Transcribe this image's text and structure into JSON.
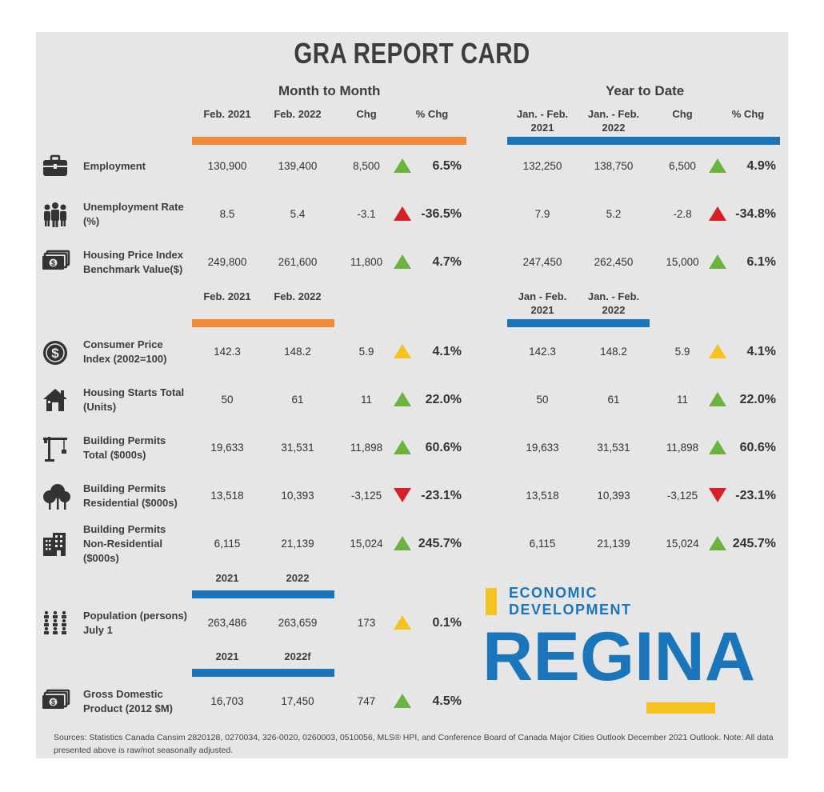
{
  "title": "GRA REPORT CARD",
  "sections": {
    "month": "Month to Month",
    "year": "Year to Date"
  },
  "headers": {
    "mm": [
      "Feb. 2021",
      "Feb. 2022",
      "Chg",
      "% Chg"
    ],
    "yy": [
      "Jan. - Feb. 2021",
      "Jan. - Feb. 2022",
      "Chg",
      "% Chg"
    ],
    "mm2": [
      "Feb. 2021",
      "Feb. 2022"
    ],
    "yy2": [
      "Jan - Feb. 2021",
      "Jan. - Feb. 2022"
    ],
    "pop": [
      "2021",
      "2022"
    ],
    "gdp": [
      "2021",
      "2022f"
    ]
  },
  "colors": {
    "orange": "#f08a35",
    "blue": "#1b75bb",
    "up_green": "#6cb33f",
    "down_red": "#d71f26",
    "neutral_yellow": "#f7c21e"
  },
  "rows": [
    {
      "icon": "briefcase-icon",
      "label": "Employment",
      "mm": [
        "130,900",
        "139,400",
        "8,500",
        "6.5%"
      ],
      "mm_dir": "up-green",
      "yy": [
        "132,250",
        "138,750",
        "6,500",
        "4.9%"
      ],
      "yy_dir": "up-green"
    },
    {
      "icon": "people-icon",
      "label": "Unemployment Rate (%)",
      "mm": [
        "8.5",
        "5.4",
        "-3.1",
        "-36.5%"
      ],
      "mm_dir": "up-red",
      "yy": [
        "7.9",
        "5.2",
        "-2.8",
        "-34.8%"
      ],
      "yy_dir": "up-red"
    },
    {
      "icon": "money-icon",
      "label": "Housing Price Index Benchmark Value($)",
      "mm": [
        "249,800",
        "261,600",
        "11,800",
        "4.7%"
      ],
      "mm_dir": "up-green",
      "yy": [
        "247,450",
        "262,450",
        "15,000",
        "6.1%"
      ],
      "yy_dir": "up-green"
    },
    {
      "icon": "dollar-coin-icon",
      "label": "Consumer Price Index (2002=100)",
      "mm": [
        "142.3",
        "148.2",
        "5.9",
        "4.1%"
      ],
      "mm_dir": "up-yellow",
      "yy": [
        "142.3",
        "148.2",
        "5.9",
        "4.1%"
      ],
      "yy_dir": "up-yellow"
    },
    {
      "icon": "house-icon",
      "label": "Housing Starts Total (Units)",
      "mm": [
        "50",
        "61",
        "11",
        "22.0%"
      ],
      "mm_dir": "up-green",
      "yy": [
        "50",
        "61",
        "11",
        "22.0%"
      ],
      "yy_dir": "up-green"
    },
    {
      "icon": "crane-icon",
      "label": "Building Permits Total ($000s)",
      "mm": [
        "19,633",
        "31,531",
        "11,898",
        "60.6%"
      ],
      "mm_dir": "up-green",
      "yy": [
        "19,633",
        "31,531",
        "11,898",
        "60.6%"
      ],
      "yy_dir": "up-green"
    },
    {
      "icon": "trees-icon",
      "label": "Building Permits Residential ($000s)",
      "mm": [
        "13,518",
        "10,393",
        "-3,125",
        "-23.1%"
      ],
      "mm_dir": "down-red",
      "yy": [
        "13,518",
        "10,393",
        "-3,125",
        "-23.1%"
      ],
      "yy_dir": "down-red"
    },
    {
      "icon": "office-building-icon",
      "label": "Building Permits Non-Residential ($000s)",
      "mm": [
        "6,115",
        "21,139",
        "15,024",
        "245.7%"
      ],
      "mm_dir": "up-green",
      "yy": [
        "6,115",
        "21,139",
        "15,024",
        "245.7%"
      ],
      "yy_dir": "up-green"
    },
    {
      "icon": "population-icon",
      "label": "Population (persons) July 1",
      "mm": [
        "263,486",
        "263,659",
        "173",
        "0.1%"
      ],
      "mm_dir": "up-yellow"
    },
    {
      "icon": "money-icon",
      "label": "Gross Domestic Product (2012 $M)",
      "mm": [
        "16,703",
        "17,450",
        "747",
        "4.5%"
      ],
      "mm_dir": "up-green"
    }
  ],
  "logo": {
    "line1": "ECONOMIC",
    "line2": "DEVELOPMENT",
    "big": "REGINA"
  },
  "source": "Sources: Statistics Canada Cansim 2820128, 0270034, 326-0020, 0260003, 0510056, MLS® HPI, and Conference Board of Canada Major Cities Outlook December 2021 Outlook. Note: All data presented above is raw/not seasonally adjusted."
}
